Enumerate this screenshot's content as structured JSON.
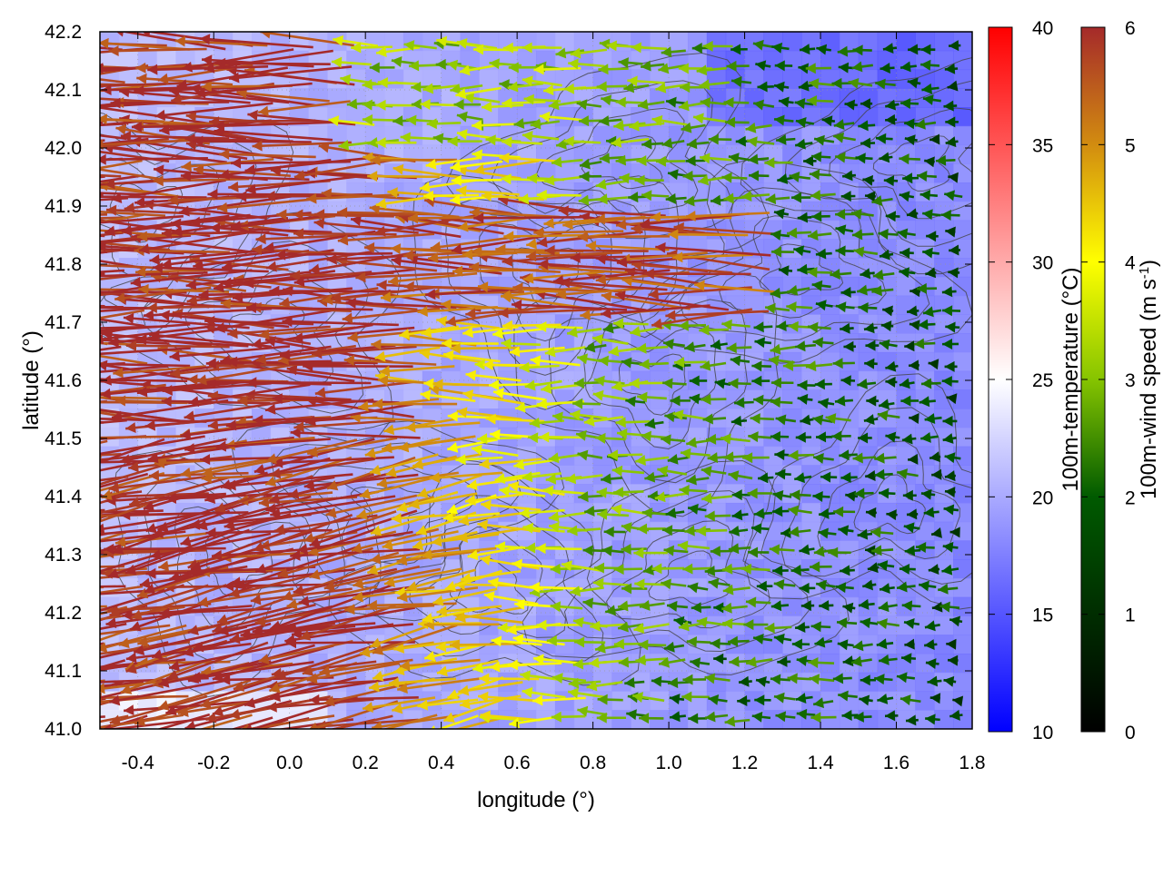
{
  "chart_data": {
    "type": "heatmap",
    "title": "",
    "xlabel": "longitude (°)",
    "ylabel": "latitude (°)",
    "xlim": [
      -0.5,
      1.8
    ],
    "ylim": [
      41.0,
      42.2
    ],
    "xticks": [
      "-0.4",
      "-0.2",
      "0.0",
      "0.2",
      "0.4",
      "0.6",
      "0.8",
      "1.0",
      "1.2",
      "1.4",
      "1.6",
      "1.8"
    ],
    "yticks": [
      "41.0",
      "41.1",
      "41.2",
      "41.3",
      "41.4",
      "41.5",
      "41.6",
      "41.7",
      "41.8",
      "41.9",
      "42.0",
      "42.1",
      "42.2"
    ],
    "grid": true,
    "layers": [
      {
        "kind": "filled-field",
        "variable": "100m-temperature",
        "range_shown": [
          15,
          30
        ]
      },
      {
        "kind": "contour-lines",
        "color": "#444444"
      },
      {
        "kind": "vector-arrows",
        "variable": "100m-wind",
        "dominant_direction": "westward",
        "note_regions": [
          {
            "region": "west (lon -0.5..0.6)",
            "speed": 6
          },
          {
            "region": "central band (lat 41.7..41.9)",
            "speed": 5
          },
          {
            "region": "east (lon 1.2..1.8)",
            "speed": 1.5
          }
        ]
      }
    ],
    "colorbars": [
      {
        "label": "100m-temperature (°C)",
        "ticks": [
          "10",
          "15",
          "20",
          "25",
          "30",
          "35",
          "40"
        ],
        "range": [
          10,
          40
        ],
        "colors": [
          "#0000ff",
          "#ffffff",
          "#ff0000"
        ]
      },
      {
        "label_main": "100m-wind speed (m s",
        "label_sup": "-1",
        "label_end": ")",
        "ticks": [
          "0",
          "1",
          "2",
          "3",
          "4",
          "5",
          "6"
        ],
        "range": [
          0,
          6
        ],
        "colors": [
          "#000000",
          "#005a00",
          "#86c400",
          "#ffff00",
          "#d28c10",
          "#a52a2a"
        ]
      }
    ]
  }
}
